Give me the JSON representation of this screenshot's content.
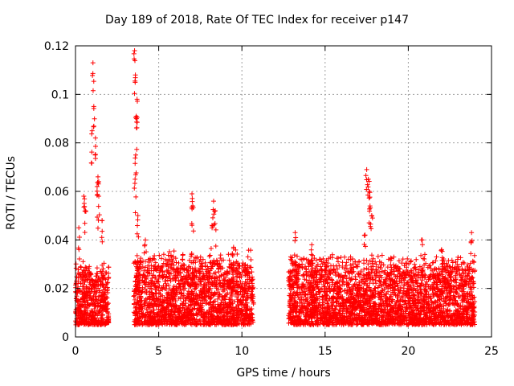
{
  "chart_data": {
    "type": "scatter",
    "title": "Day 189 of 2018, Rate Of TEC Index for receiver p147",
    "xlabel": "GPS time / hours",
    "ylabel": "ROTI / TECUs",
    "xlim": [
      0,
      25
    ],
    "ylim": [
      0,
      0.12
    ],
    "xticks": [
      0,
      5,
      10,
      15,
      20,
      25
    ],
    "yticks": [
      0,
      0.02,
      0.04,
      0.06,
      0.08,
      0.1,
      0.12
    ],
    "xtick_labels": [
      "0",
      "5",
      "10",
      "15",
      "20",
      "25"
    ],
    "ytick_labels": [
      "0",
      "0.02",
      "0.04",
      "0.06",
      "0.08",
      "0.1",
      "0.12"
    ],
    "grid": true,
    "series": [
      {
        "name": "ROTI",
        "color": "#ff0000",
        "marker": "plus",
        "segments": [
          {
            "x_start": 0.0,
            "x_end": 2.0,
            "y_low": 0.005,
            "y_high": 0.025
          },
          {
            "x_start": 3.5,
            "x_end": 10.7,
            "y_low": 0.005,
            "y_high": 0.028
          },
          {
            "x_start": 12.8,
            "x_end": 24.0,
            "y_low": 0.005,
            "y_high": 0.027
          }
        ],
        "peaks": [
          {
            "x": 1.05,
            "y": 0.113
          },
          {
            "x": 1.1,
            "y": 0.095
          },
          {
            "x": 1.2,
            "y": 0.082
          },
          {
            "x": 1.0,
            "y": 0.085
          },
          {
            "x": 1.3,
            "y": 0.062
          },
          {
            "x": 1.4,
            "y": 0.058
          },
          {
            "x": 1.6,
            "y": 0.048
          },
          {
            "x": 0.5,
            "y": 0.058
          },
          {
            "x": 0.6,
            "y": 0.052
          },
          {
            "x": 0.2,
            "y": 0.045
          },
          {
            "x": 1.35,
            "y": 0.066
          },
          {
            "x": 3.55,
            "y": 0.118
          },
          {
            "x": 3.6,
            "y": 0.108
          },
          {
            "x": 3.7,
            "y": 0.098
          },
          {
            "x": 3.65,
            "y": 0.091
          },
          {
            "x": 3.62,
            "y": 0.075
          },
          {
            "x": 3.58,
            "y": 0.065
          },
          {
            "x": 3.75,
            "y": 0.05
          },
          {
            "x": 4.2,
            "y": 0.04
          },
          {
            "x": 7.0,
            "y": 0.059
          },
          {
            "x": 7.05,
            "y": 0.054
          },
          {
            "x": 8.3,
            "y": 0.056
          },
          {
            "x": 8.2,
            "y": 0.046
          },
          {
            "x": 8.4,
            "y": 0.052
          },
          {
            "x": 9.5,
            "y": 0.037
          },
          {
            "x": 13.2,
            "y": 0.043
          },
          {
            "x": 14.2,
            "y": 0.038
          },
          {
            "x": 17.5,
            "y": 0.069
          },
          {
            "x": 17.6,
            "y": 0.065
          },
          {
            "x": 17.65,
            "y": 0.06
          },
          {
            "x": 17.7,
            "y": 0.054
          },
          {
            "x": 17.8,
            "y": 0.05
          },
          {
            "x": 17.4,
            "y": 0.042
          },
          {
            "x": 20.8,
            "y": 0.04
          },
          {
            "x": 23.8,
            "y": 0.043
          },
          {
            "x": 22.0,
            "y": 0.036
          }
        ]
      }
    ]
  }
}
